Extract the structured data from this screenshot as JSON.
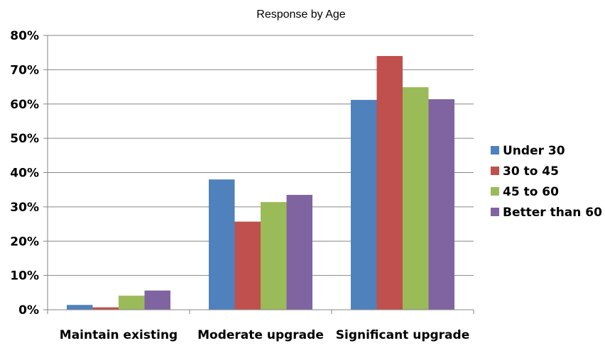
{
  "chart_data": {
    "type": "bar",
    "title": "Response by Age",
    "categories": [
      "Maintain existing",
      "Moderate upgrade",
      "Significant upgrade"
    ],
    "series": [
      {
        "name": "Under 30",
        "values": [
          1.4,
          38.0,
          61.2
        ],
        "color": "#4F81BD"
      },
      {
        "name": "30 to 45",
        "values": [
          0.7,
          25.7,
          74.0
        ],
        "color": "#C0504D"
      },
      {
        "name": "45 to 60",
        "values": [
          4.1,
          31.4,
          64.9
        ],
        "color": "#9BBB59"
      },
      {
        "name": "Better than 60",
        "values": [
          5.6,
          33.5,
          61.4
        ],
        "color": "#8064A2"
      }
    ],
    "ylim": [
      0,
      80
    ],
    "yticks": [
      0,
      10,
      20,
      30,
      40,
      50,
      60,
      70,
      80
    ],
    "ytick_labels": [
      "0%",
      "10%",
      "20%",
      "30%",
      "40%",
      "50%",
      "60%",
      "70%",
      "80%"
    ],
    "grid": true,
    "legend_position": "right",
    "xlabel": "",
    "ylabel": ""
  }
}
